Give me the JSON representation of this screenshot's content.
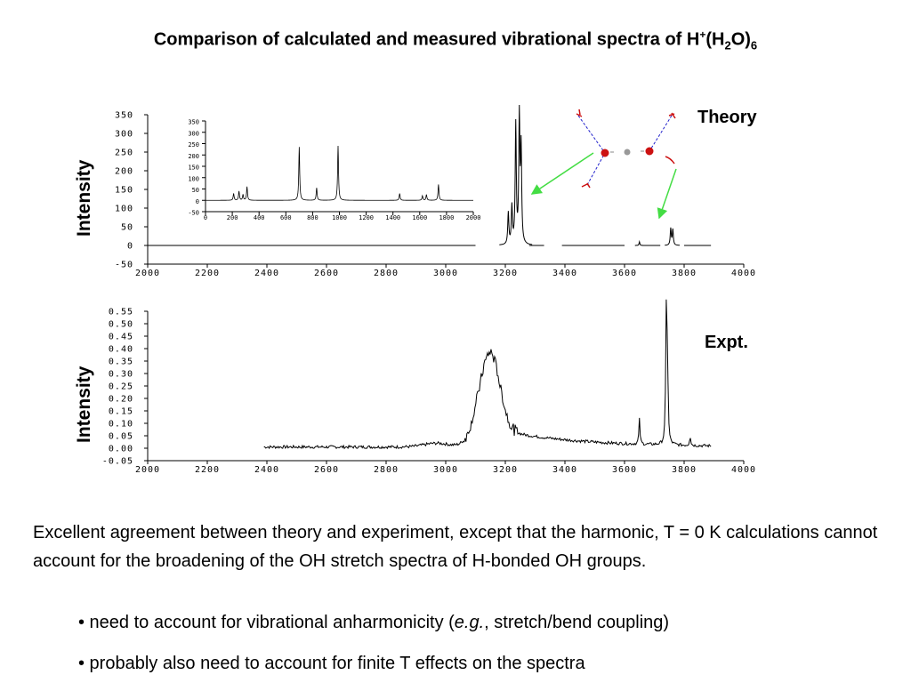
{
  "title": {
    "main": "Comparison of calculated and measured vibrational spectra of H",
    "sup": "+",
    "open": "(H",
    "sub1": "2",
    "mid": "O)",
    "sub2": "6"
  },
  "panels": {
    "theory_label": "Theory",
    "expt_label": "Expt.",
    "ylabel": "Intensity"
  },
  "text": {
    "paragraph": "Excellent agreement between theory and experiment, except that the harmonic, T = 0 K calculations cannot account for the broadening of the OH stretch spectra of H-bonded OH groups.",
    "bullet1_pre": "• need to account for vibrational anharmonicity (",
    "bullet1_em": "e.g.",
    "bullet1_post": ", stretch/bend coupling)",
    "bullet2": "• probably also need to account for finite T effects on the spectra"
  },
  "colors": {
    "molecule_oxygen": "#cc1111",
    "molecule_hydrogen": "#999999",
    "bond_dashes": "#2222cc",
    "arrows": "#44dd44"
  },
  "chart_data": [
    {
      "type": "line",
      "name": "theory",
      "xlim": [
        2000,
        4000
      ],
      "ylim": [
        -50,
        350
      ],
      "xticks": [
        "2000",
        "2200",
        "2400",
        "2600",
        "2800",
        "3000",
        "3200",
        "3400",
        "3600",
        "3800",
        "4000"
      ],
      "yticks": [
        "350",
        "300",
        "250",
        "200",
        "150",
        "100",
        "50",
        "0",
        "-50"
      ],
      "peaks": [
        {
          "x": 3210,
          "y": 85
        },
        {
          "x": 3222,
          "y": 100
        },
        {
          "x": 3235,
          "y": 320
        },
        {
          "x": 3247,
          "y": 335
        },
        {
          "x": 3253,
          "y": 250
        },
        {
          "x": 3650,
          "y": 10
        },
        {
          "x": 3755,
          "y": 45
        },
        {
          "x": 3762,
          "y": 42
        }
      ],
      "inset": {
        "xlim": [
          0,
          2000
        ],
        "ylim": [
          -50,
          350
        ],
        "xticks": [
          "0",
          "200",
          "400",
          "600",
          "800",
          "1000",
          "1200",
          "1400",
          "1600",
          "1800",
          "2000"
        ],
        "yticks": [
          "350",
          "300",
          "250",
          "200",
          "150",
          "100",
          "50",
          "0",
          "-50"
        ],
        "peaks": [
          {
            "x": 210,
            "y": 30
          },
          {
            "x": 250,
            "y": 40
          },
          {
            "x": 280,
            "y": 25
          },
          {
            "x": 310,
            "y": 60
          },
          {
            "x": 700,
            "y": 235
          },
          {
            "x": 830,
            "y": 55
          },
          {
            "x": 990,
            "y": 240
          },
          {
            "x": 1450,
            "y": 30
          },
          {
            "x": 1620,
            "y": 20
          },
          {
            "x": 1650,
            "y": 25
          },
          {
            "x": 1740,
            "y": 70
          }
        ]
      }
    },
    {
      "type": "line",
      "name": "experiment",
      "xlim": [
        2000,
        4000
      ],
      "ylim": [
        -0.05,
        0.55
      ],
      "xticks": [
        "2000",
        "2200",
        "2400",
        "2600",
        "2800",
        "3000",
        "3200",
        "3400",
        "3600",
        "3800",
        "4000"
      ],
      "yticks": [
        "0.55",
        "0.50",
        "0.45",
        "0.40",
        "0.35",
        "0.30",
        "0.25",
        "0.20",
        "0.15",
        "0.10",
        "0.05",
        "0.00",
        "-0.05"
      ],
      "x_range": [
        2390,
        3890
      ],
      "broad_band": {
        "center": 3150,
        "height": 0.38
      },
      "sharp_peaks": [
        {
          "x": 3650,
          "y": 0.1
        },
        {
          "x": 3740,
          "y": 0.5
        },
        {
          "x": 3744,
          "y": 0.35
        },
        {
          "x": 3820,
          "y": 0.04
        }
      ]
    }
  ]
}
